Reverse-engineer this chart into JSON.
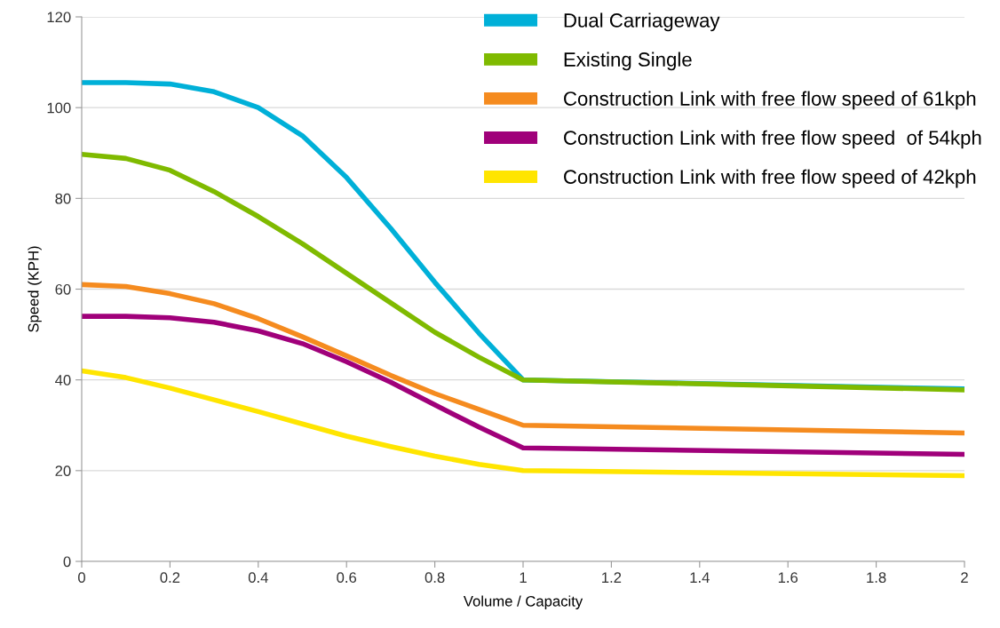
{
  "chart_data": {
    "type": "line",
    "xlabel": "Volume / Capacity",
    "ylabel": "Speed (KPH)",
    "x": [
      0,
      0.1,
      0.2,
      0.3,
      0.4,
      0.5,
      0.6,
      0.7,
      0.8,
      0.9,
      1.0,
      2.0
    ],
    "series": [
      {
        "name": "Dual Carriageway",
        "color": "#00b0d8",
        "values": [
          105.5,
          105.5,
          105.2,
          103.5,
          100,
          93.8,
          84.6,
          73.4,
          61.5,
          50.3,
          40,
          38
        ]
      },
      {
        "name": "Existing Single",
        "color": "#7fba00",
        "values": [
          89.7,
          88.8,
          86.2,
          81.5,
          76,
          70,
          63.5,
          57,
          50.5,
          45,
          40,
          37.8
        ]
      },
      {
        "name": "Construction Link with free flow speed of 61kph",
        "color": "#f58b1f",
        "values": [
          61,
          60.6,
          59,
          56.8,
          53.5,
          49.5,
          45.3,
          41,
          37,
          33.5,
          30,
          28.3
        ]
      },
      {
        "name": "Construction Link with free flow speed  of 54kph",
        "color": "#a0007a",
        "values": [
          54,
          54,
          53.7,
          52.7,
          50.8,
          48,
          44,
          39.5,
          34.5,
          29.6,
          25,
          23.6
        ]
      },
      {
        "name": "Construction Link with free flow speed of 42kph",
        "color": "#ffe500",
        "values": [
          42,
          40.5,
          38.2,
          35.6,
          33,
          30.3,
          27.6,
          25.3,
          23.2,
          21.4,
          20,
          18.9
        ]
      }
    ],
    "xlim": [
      0,
      2
    ],
    "xticks": [
      0,
      0.2,
      0.4,
      0.6,
      0.8,
      1,
      1.2,
      1.4,
      1.6,
      1.8,
      2
    ],
    "ylim": [
      0,
      120
    ],
    "yticks": [
      0,
      20,
      40,
      60,
      80,
      100,
      120
    ],
    "grid": "y",
    "legend": "top right",
    "marker": "none",
    "line_style": "solid"
  }
}
